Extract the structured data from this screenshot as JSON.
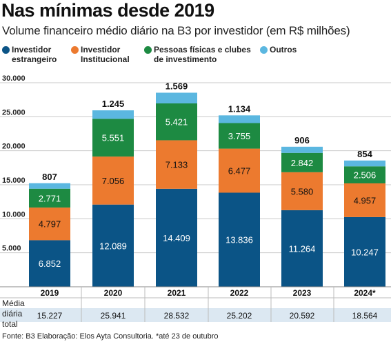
{
  "header": {
    "title": "Nas mínimas desde 2019",
    "subtitle": "Volume financeiro médio diário na B3 por investidor (em R$ milhões)"
  },
  "legend": {
    "items": [
      {
        "line1": "Investidor",
        "line2": "estrangeiro",
        "color": "#0b5486"
      },
      {
        "line1": "Investidor",
        "line2": "Institucional",
        "color": "#ec7a2f"
      },
      {
        "line1": "Pessoas físicas e clubes",
        "line2": "de investimento",
        "color": "#1d8a42"
      },
      {
        "line1": "Outros",
        "line2": "",
        "color": "#5bb7e0"
      }
    ]
  },
  "total_row": {
    "label_lines": [
      "Média",
      "diária",
      "total"
    ],
    "values": [
      "15.227",
      "25.941",
      "28.532",
      "25.202",
      "20.592",
      "18.564"
    ]
  },
  "footer": {
    "source": "Fonte: B3 Elaboração: Elos Ayta Consultoria. *até 23 de outubro"
  },
  "chart_data": {
    "type": "bar",
    "stacked": true,
    "categories": [
      "2019",
      "2020",
      "2021",
      "2022",
      "2023",
      "2024*"
    ],
    "series": [
      {
        "name": "Investidor estrangeiro",
        "color": "#0b5486",
        "values": [
          6852,
          12089,
          14409,
          13836,
          11264,
          10247
        ],
        "labels": [
          "6.852",
          "12.089",
          "14.409",
          "13.836",
          "11.264",
          "10.247"
        ]
      },
      {
        "name": "Investidor Institucional",
        "color": "#ec7a2f",
        "values": [
          4797,
          7056,
          7133,
          6477,
          5580,
          4957
        ],
        "labels": [
          "4.797",
          "7.056",
          "7.133",
          "6.477",
          "5.580",
          "4.957"
        ]
      },
      {
        "name": "Pessoas físicas e clubes de investimento",
        "color": "#1d8a42",
        "values": [
          2771,
          5551,
          5421,
          3755,
          2842,
          2506
        ],
        "labels": [
          "2.771",
          "5.551",
          "5.421",
          "3.755",
          "2.842",
          "2.506"
        ]
      },
      {
        "name": "Outros",
        "color": "#5bb7e0",
        "values": [
          807,
          1245,
          1569,
          1134,
          906,
          854
        ],
        "labels": [
          "807",
          "1.245",
          "1.569",
          "1.134",
          "906",
          "854"
        ]
      }
    ],
    "y_ticks": [
      5000,
      10000,
      15000,
      20000,
      25000,
      30000
    ],
    "y_tick_labels": [
      "5.000",
      "10.000",
      "15.000",
      "20.000",
      "25.000",
      "30.000"
    ],
    "ylim": [
      0,
      30000
    ],
    "grid": true
  }
}
